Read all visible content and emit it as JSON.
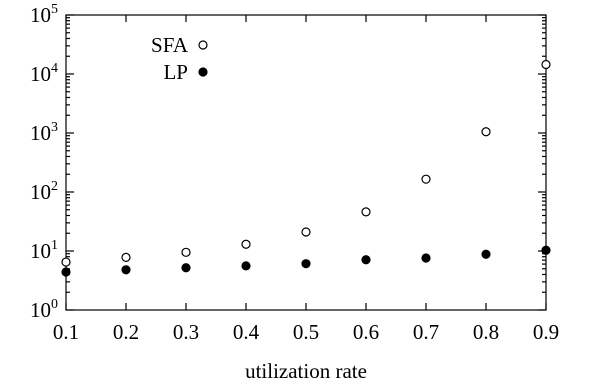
{
  "chart_data": {
    "type": "scatter",
    "title": "",
    "xlabel": "utilization rate",
    "ylabel": "",
    "xlim": [
      0.1,
      0.9
    ],
    "ylim": [
      1,
      100000
    ],
    "yscale": "log",
    "grid": false,
    "legend_position": "top-left",
    "x_ticks": [
      0.1,
      0.2,
      0.3,
      0.4,
      0.5,
      0.6,
      0.7,
      0.8,
      0.9
    ],
    "x_tick_labels": [
      "0.1",
      "0.2",
      "0.3",
      "0.4",
      "0.5",
      "0.6",
      "0.7",
      "0.8",
      "0.9"
    ],
    "y_ticks": [
      1,
      10,
      100,
      1000,
      10000,
      100000
    ],
    "y_tick_labels": [
      {
        "base": "10",
        "exp": "0"
      },
      {
        "base": "10",
        "exp": "1"
      },
      {
        "base": "10",
        "exp": "2"
      },
      {
        "base": "10",
        "exp": "3"
      },
      {
        "base": "10",
        "exp": "4"
      },
      {
        "base": "10",
        "exp": "5"
      }
    ],
    "x": [
      0.1,
      0.2,
      0.3,
      0.4,
      0.5,
      0.6,
      0.7,
      0.8,
      0.9
    ],
    "series": [
      {
        "name": "SFA",
        "marker": "open-circle",
        "color": "#000000",
        "values": [
          6.5,
          7.8,
          9.5,
          13,
          21,
          46,
          165,
          1050,
          14500
        ]
      },
      {
        "name": "LP",
        "marker": "filled-circle",
        "color": "#000000",
        "values": [
          4.4,
          4.8,
          5.2,
          5.6,
          6.1,
          7.1,
          7.6,
          8.8,
          10.3
        ]
      }
    ]
  }
}
